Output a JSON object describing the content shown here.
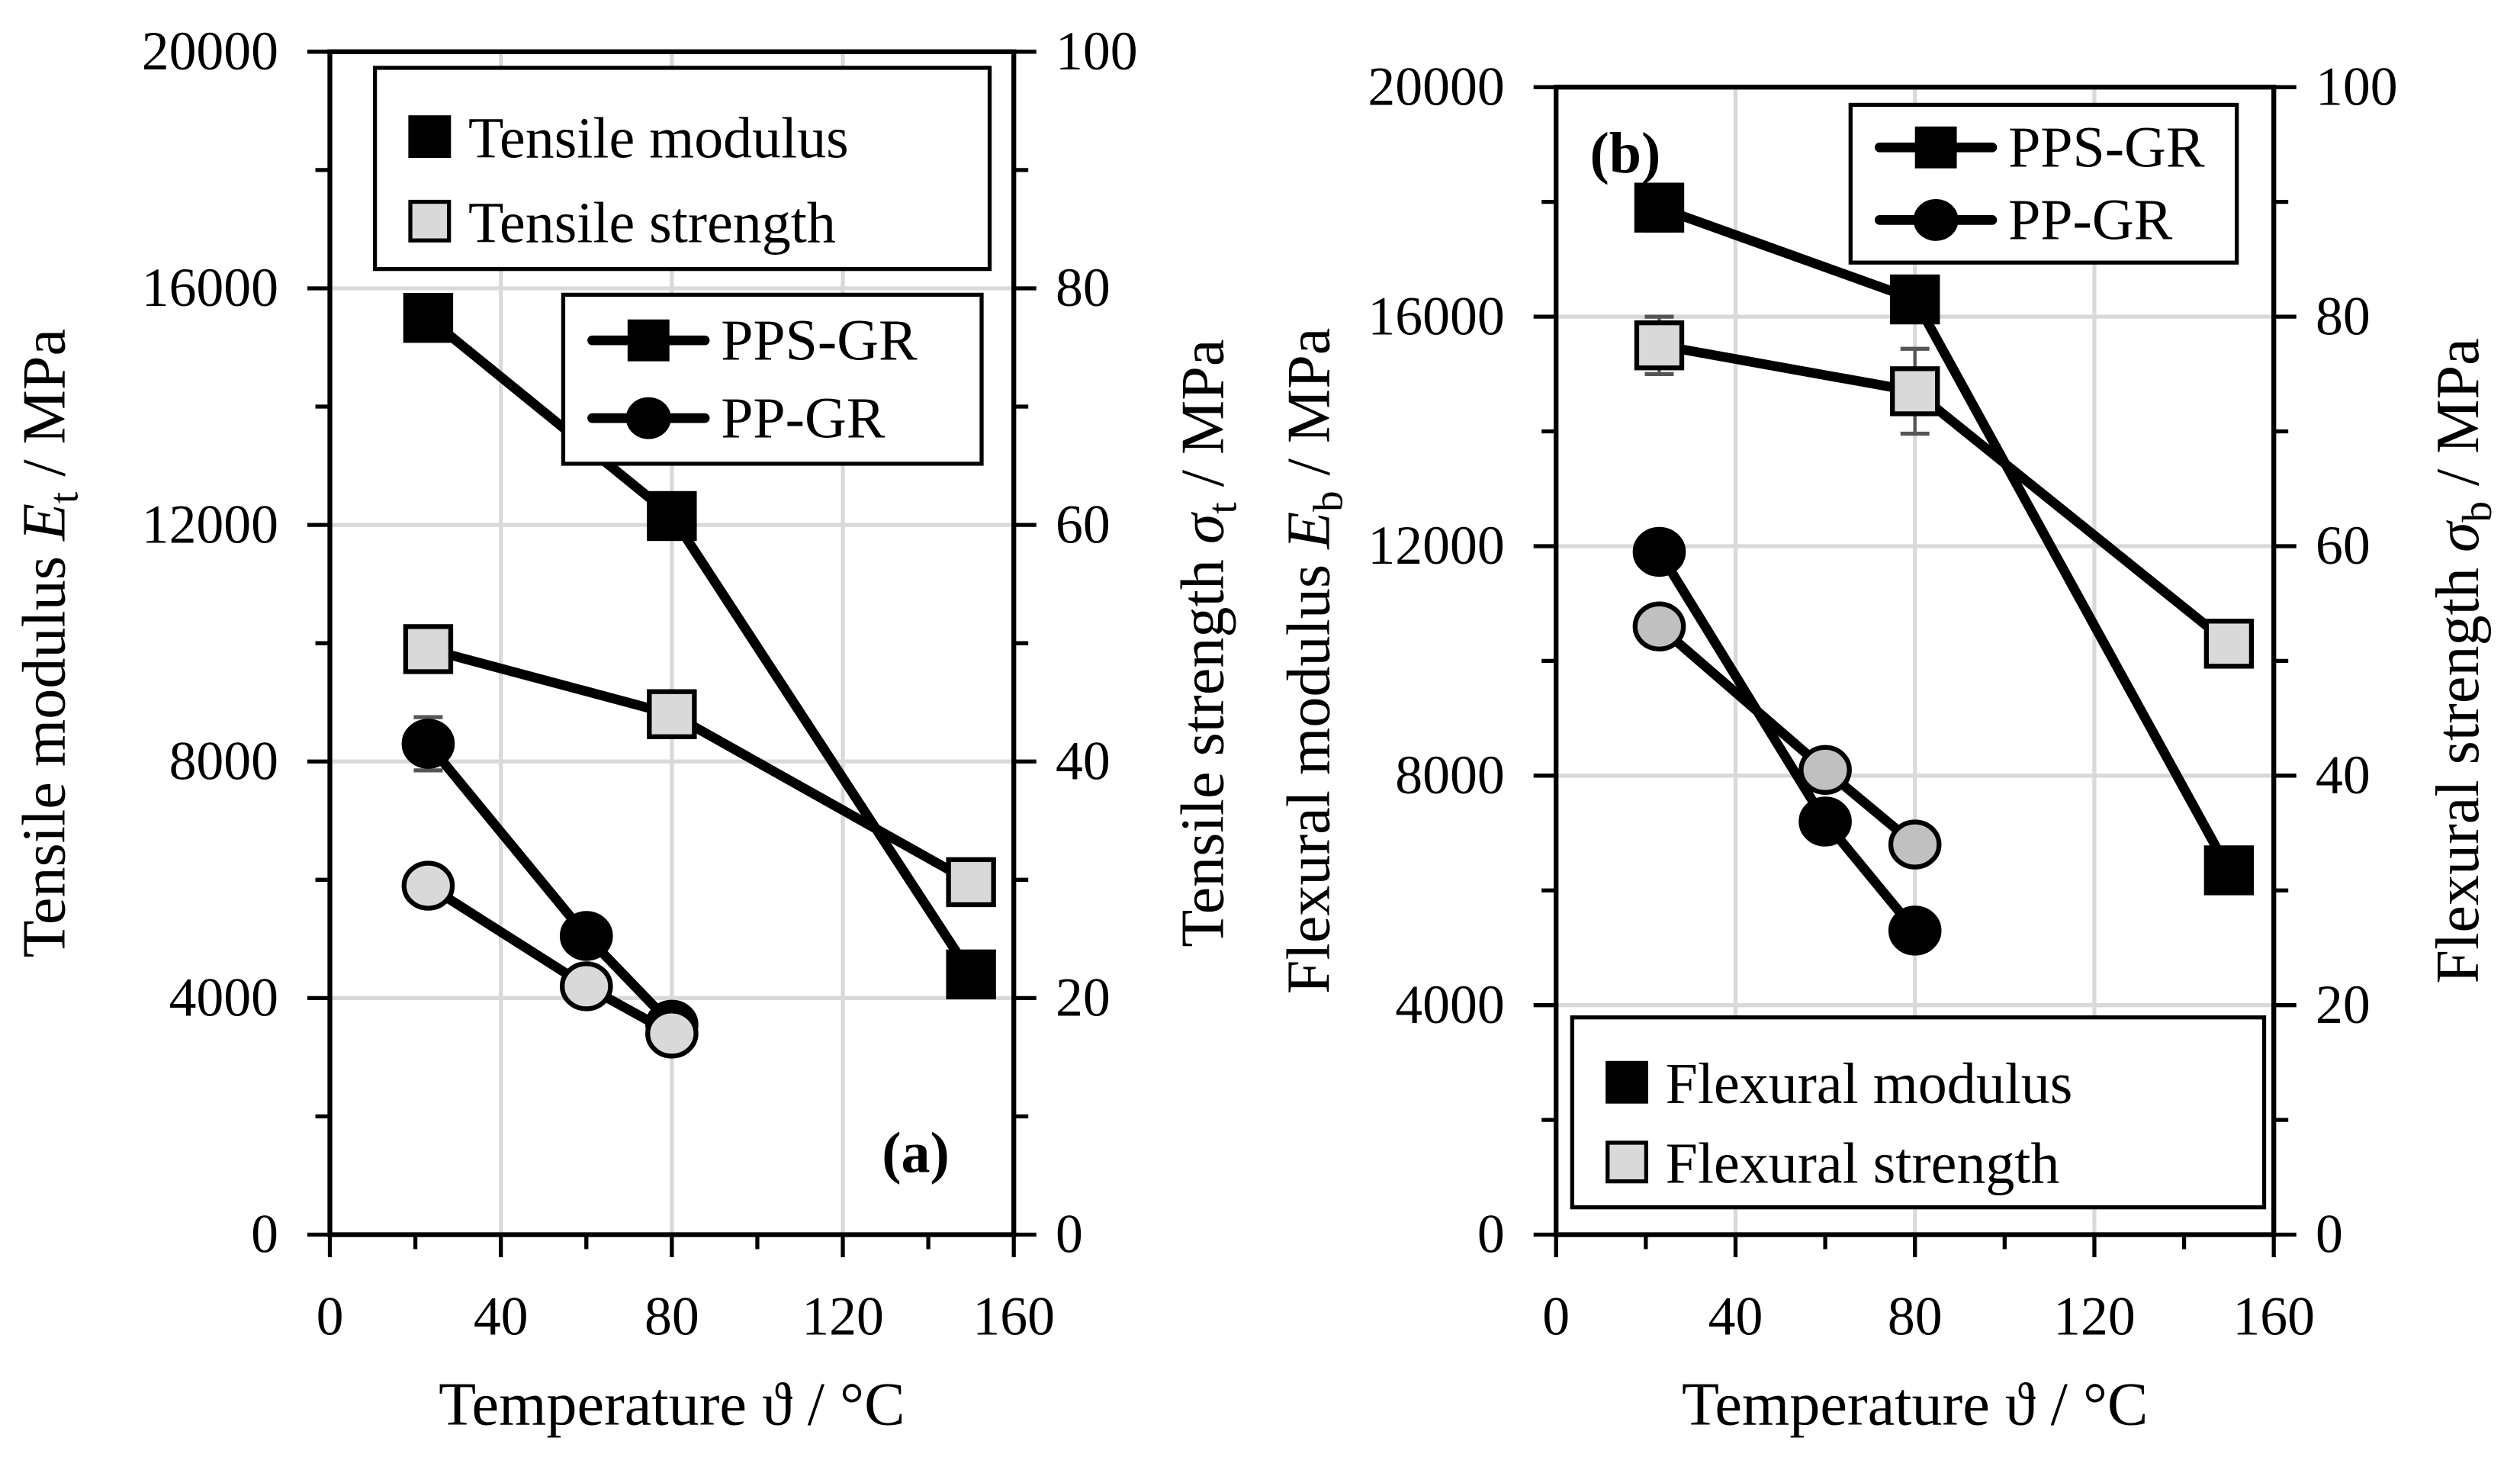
{
  "chart_data": [
    {
      "type": "line",
      "panel_label": "(a)",
      "xlabel": "Temperature ϑ / °C",
      "ylabel_left": {
        "main": "Tensile modulus ",
        "sym": "E",
        "sub": "t",
        "unit": " / MPa"
      },
      "ylabel_right": {
        "main": "Tensile strength ",
        "sym": "σ",
        "sub": "t",
        "unit": " / MPa"
      },
      "xlim": [
        0,
        160
      ],
      "xticks": [
        0,
        40,
        80,
        120,
        160
      ],
      "ylim_left": [
        0,
        20000
      ],
      "yticks_left": [
        0,
        4000,
        8000,
        12000,
        16000,
        20000
      ],
      "ylim_right": [
        0,
        100
      ],
      "yticks_right": [
        0,
        20,
        40,
        60,
        80,
        100
      ],
      "grid": true,
      "legend_property": [
        "Tensile modulus",
        "Tensile strength"
      ],
      "legend_material": [
        "PPS-GR",
        "PP-GR"
      ],
      "series": [
        {
          "name": "PPS-GR Tensile modulus",
          "axis": "left",
          "marker": "square",
          "fill": "#000000",
          "x": [
            23,
            80,
            150
          ],
          "y": [
            15500,
            12150,
            4400
          ],
          "err": [
            0,
            0,
            0
          ]
        },
        {
          "name": "PP-GR Tensile modulus",
          "axis": "left",
          "marker": "circle",
          "fill": "#000000",
          "x": [
            23,
            60,
            80
          ],
          "y": [
            8300,
            5050,
            3550
          ],
          "err": [
            450,
            0,
            0
          ]
        },
        {
          "name": "PPS-GR Tensile strength",
          "axis": "right",
          "marker": "square",
          "fill": "#d9d9d9",
          "x": [
            23,
            80,
            150
          ],
          "y": [
            49.5,
            44,
            29.8
          ],
          "err": [
            0,
            1.5,
            0
          ]
        },
        {
          "name": "PP-GR Tensile strength",
          "axis": "right",
          "marker": "circle",
          "fill": "#d9d9d9",
          "x": [
            23,
            60,
            80
          ],
          "y": [
            29.5,
            21,
            17
          ],
          "err": [
            0,
            0,
            0
          ]
        }
      ]
    },
    {
      "type": "line",
      "panel_label": "(b)",
      "xlabel": "Temperature ϑ / °C",
      "ylabel_left": {
        "main": "Flexural modulus  ",
        "sym": "E",
        "sub": "b",
        "unit": " / MPa"
      },
      "ylabel_right": {
        "main": "Flexural strength ",
        "sym": "σ",
        "sub": "b",
        "unit": " / MPa"
      },
      "xlim": [
        0,
        160
      ],
      "xticks": [
        0,
        40,
        80,
        120,
        160
      ],
      "ylim_left": [
        0,
        20000
      ],
      "yticks_left": [
        0,
        4000,
        8000,
        12000,
        16000,
        20000
      ],
      "ylim_right": [
        0,
        100
      ],
      "yticks_right": [
        0,
        20,
        40,
        60,
        80,
        100
      ],
      "grid": true,
      "legend_property": [
        "Flexural modulus",
        "Flexural strength"
      ],
      "legend_material": [
        "PPS-GR",
        "PP-GR"
      ],
      "series": [
        {
          "name": "PPS-GR Flexural modulus",
          "axis": "left",
          "marker": "square",
          "fill": "#000000",
          "x": [
            23,
            80,
            150
          ],
          "y": [
            17900,
            16300,
            6350
          ],
          "err": [
            400,
            0,
            0
          ]
        },
        {
          "name": "PP-GR Flexural modulus",
          "axis": "left",
          "marker": "circle",
          "fill": "#000000",
          "x": [
            23,
            60,
            80
          ],
          "y": [
            11900,
            7200,
            5300
          ],
          "err": [
            300,
            0,
            0
          ]
        },
        {
          "name": "PPS-GR Flexural strength",
          "axis": "right",
          "marker": "square",
          "fill": "#d9d9d9",
          "x": [
            23,
            80,
            150
          ],
          "y": [
            77.5,
            73.5,
            51.5
          ],
          "err": [
            2.5,
            3.7,
            0
          ]
        },
        {
          "name": "PP-GR Flexural strength",
          "axis": "right",
          "marker": "circle",
          "fill": "#c0c0c0",
          "x": [
            23,
            60,
            80
          ],
          "y": [
            53,
            40.5,
            34
          ],
          "err": [
            0,
            0,
            0
          ]
        }
      ]
    }
  ]
}
